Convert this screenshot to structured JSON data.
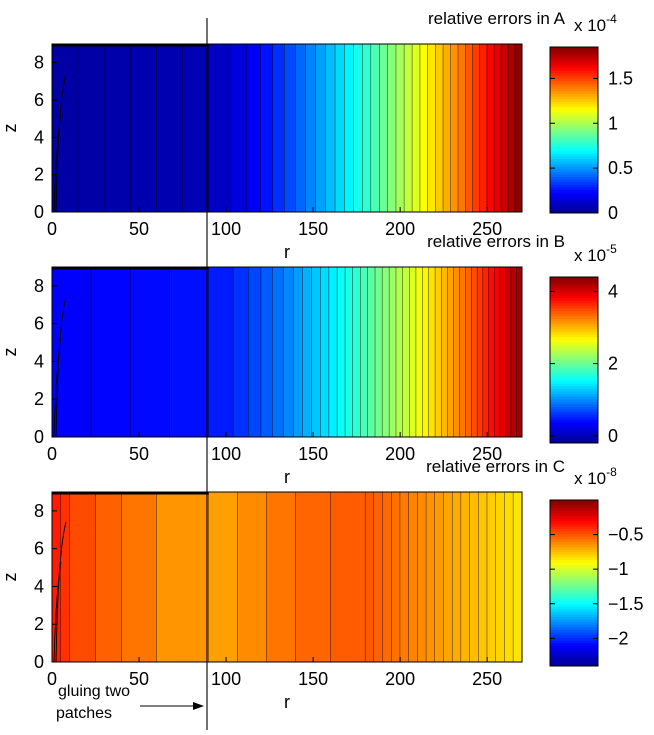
{
  "annotation": {
    "text_line1": "gluing two",
    "text_line2": "patches"
  },
  "colormap": [
    "#00008f",
    "#0000ff",
    "#0080ff",
    "#00ffff",
    "#80ff80",
    "#ffff00",
    "#ff8000",
    "#ff0000",
    "#800000"
  ],
  "chart_data": [
    {
      "type": "heatmap",
      "title": "relative errors in A",
      "xlabel": "r",
      "ylabel": "z",
      "xlim": [
        0,
        270
      ],
      "ylim": [
        0,
        9
      ],
      "xticks": [
        0,
        50,
        100,
        150,
        200,
        250
      ],
      "yticks": [
        0,
        2,
        4,
        6,
        8
      ],
      "colorbar": {
        "min": 0,
        "max": 1.85,
        "ticks": [
          0,
          0.5,
          1,
          1.5
        ],
        "exponent_label": "x 10",
        "exponent": "-4"
      },
      "field": {
        "breaks_r": [
          0,
          90,
          270
        ],
        "values": [
          0.04,
          0.08,
          1.85
        ],
        "levels_per_segment": [
          6,
          34
        ],
        "gamma": [
          1,
          1.35
        ]
      }
    },
    {
      "type": "heatmap",
      "title": "relative errors in B",
      "xlabel": "r",
      "ylabel": "z",
      "xlim": [
        0,
        270
      ],
      "ylim": [
        0,
        9
      ],
      "xticks": [
        0,
        50,
        100,
        150,
        200,
        250
      ],
      "yticks": [
        0,
        2,
        4,
        6,
        8
      ],
      "colorbar": {
        "min": -0.2,
        "max": 4.4,
        "ticks": [
          0,
          2,
          4
        ],
        "exponent_label": "x 10",
        "exponent": "-5"
      },
      "field": {
        "breaks_r": [
          0,
          90,
          270
        ],
        "values": [
          0.35,
          0.45,
          4.3
        ],
        "levels_per_segment": [
          4,
          40
        ],
        "gamma": [
          1,
          1.45
        ]
      }
    },
    {
      "type": "heatmap",
      "title": "relative errors in C",
      "xlabel": "r",
      "ylabel": "z",
      "xlim": [
        0,
        270
      ],
      "ylim": [
        0,
        9
      ],
      "xticks": [
        0,
        50,
        100,
        150,
        200,
        250
      ],
      "yticks": [
        0,
        2,
        4,
        6,
        8
      ],
      "colorbar": {
        "min": -2.4,
        "max": 0,
        "ticks": [
          -2,
          -1.5,
          -1,
          -0.5
        ],
        "exponent_label": "x 10",
        "exponent": "-8"
      },
      "field": {
        "breaks_r": [
          0,
          5,
          10,
          25,
          40,
          60,
          90,
          140,
          180,
          270
        ],
        "values": [
          -0.35,
          -0.38,
          -0.45,
          -0.5,
          -0.55,
          -0.6,
          -0.7,
          -0.55,
          -0.5,
          -0.85
        ],
        "levels_per_segment": [
          1,
          1,
          1,
          1,
          1,
          1,
          3,
          2,
          18
        ],
        "gamma": [
          1,
          1,
          1,
          1,
          1,
          1,
          1,
          1,
          1
        ]
      }
    }
  ]
}
